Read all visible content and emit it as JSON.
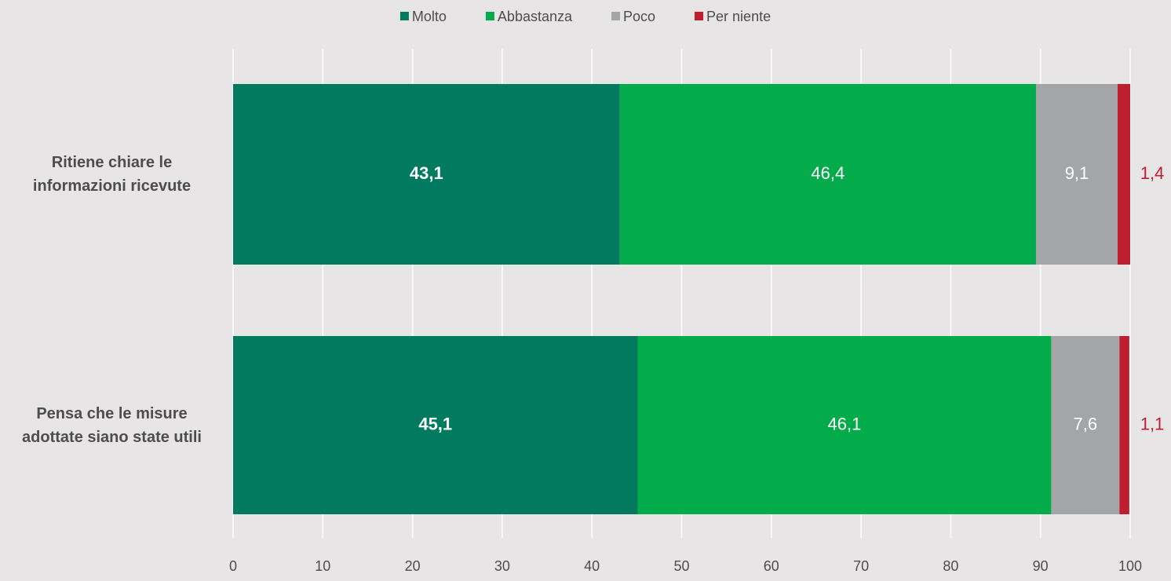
{
  "chart_data": {
    "type": "stacked-barh",
    "categories": [
      "Ritiene chiare le\ninformazioni ricevute",
      "Pensa che le misure\nadottate siano state utili"
    ],
    "series": [
      {
        "name": "Molto",
        "color": "#027a60",
        "values": [
          43.1,
          45.1
        ],
        "value_labels": [
          "43,1",
          "45,1"
        ]
      },
      {
        "name": "Abbastanza",
        "color": "#03ab4b",
        "values": [
          46.4,
          46.1
        ],
        "value_labels": [
          "46,4",
          "46,1"
        ]
      },
      {
        "name": "Poco",
        "color": "#a4a5a8",
        "values": [
          9.1,
          7.6
        ],
        "value_labels": [
          "9,1",
          "7,6"
        ]
      },
      {
        "name": "Per niente",
        "color": "#be1e2d",
        "values": [
          1.4,
          1.1
        ],
        "value_labels": [
          "1,4",
          "1,1"
        ]
      }
    ],
    "xlim": [
      0,
      100
    ],
    "xticks": [
      0,
      10,
      20,
      30,
      40,
      50,
      60,
      70,
      80,
      90,
      100
    ],
    "grid": true,
    "legend": "top"
  }
}
